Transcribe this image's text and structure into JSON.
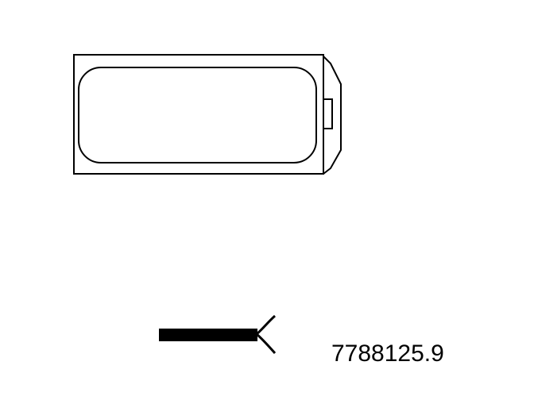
{
  "diagram": {
    "reference_number": "7788125.9",
    "colors": {
      "line": "#000000",
      "background": "#ffffff"
    },
    "parts": [
      {
        "name": "rectangular-component",
        "icon": "rounded-rect-component-icon"
      },
      {
        "name": "wire-connector",
        "icon": "wire-lead-icon"
      }
    ]
  }
}
